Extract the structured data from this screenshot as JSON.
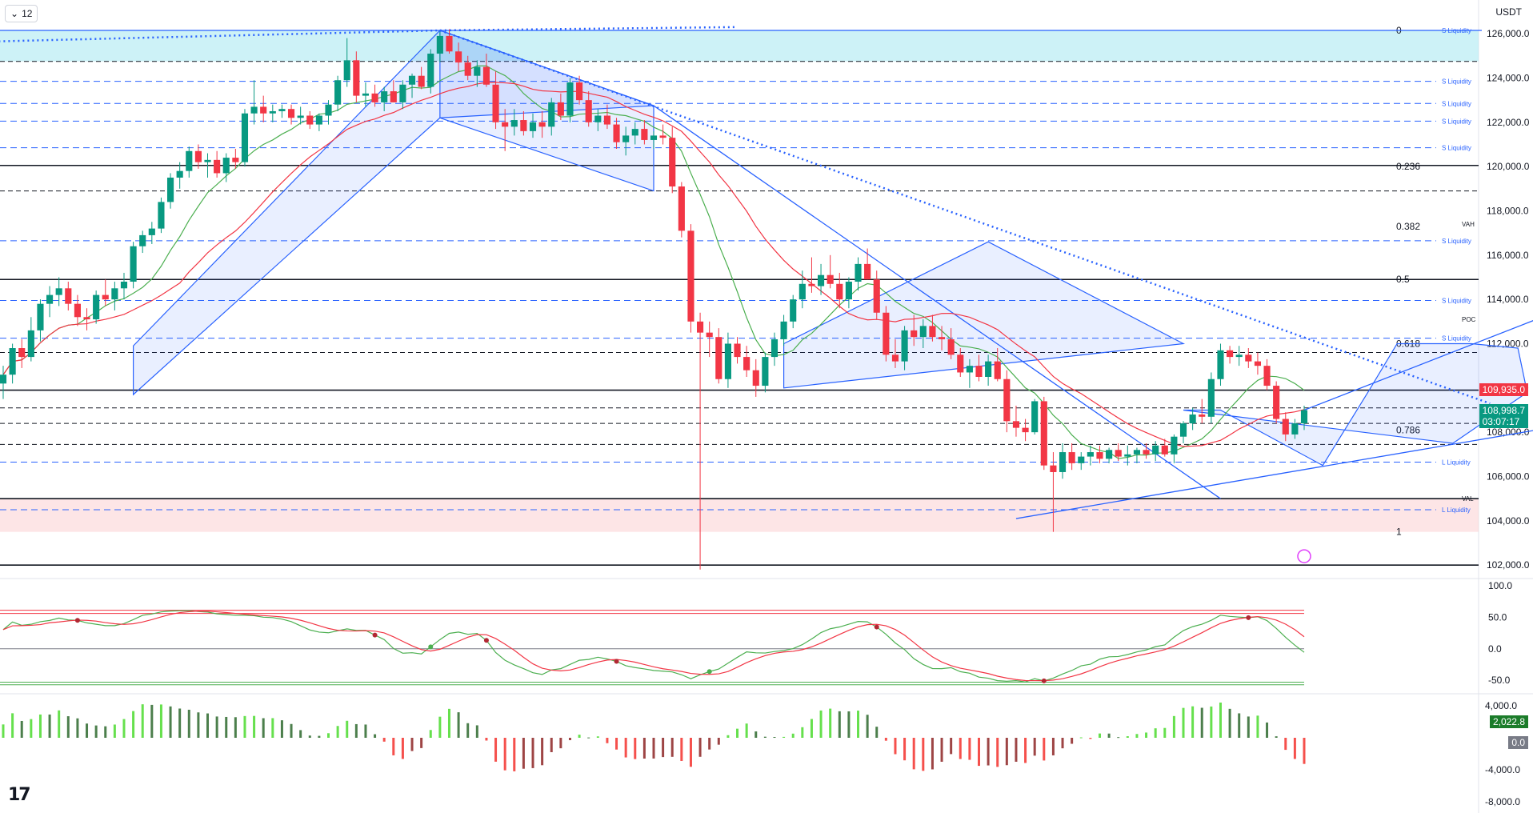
{
  "interval": {
    "label": "12",
    "chevron_icon": "chevron-down-icon"
  },
  "currency": "USDT",
  "logo": "tradingview-logo",
  "chart_data": [
    {
      "type": "candlestick",
      "title": "",
      "ylim": [
        101500,
        126800
      ],
      "y_ticks": [
        "126,000.0",
        "124,000.0",
        "122,000.0",
        "120,000.0",
        "118,000.0",
        "116,000.0",
        "114,000.0",
        "112,000.0",
        "110,000.0",
        "108,000.0",
        "106,000.0",
        "104,000.0",
        "102,000.0"
      ],
      "y_tick_values": [
        126000,
        124000,
        122000,
        120000,
        118000,
        116000,
        114000,
        112000,
        110000,
        108000,
        106000,
        104000,
        102000
      ],
      "current_price": {
        "label": "108,998.7",
        "countdown": "03:07:17",
        "color": "#089981"
      },
      "marked_price": {
        "label": "109,935.0",
        "color": "#f23645"
      },
      "fib_levels": [
        {
          "label": "0",
          "value": 126150
        },
        {
          "label": "0.236",
          "value": 120000
        },
        {
          "label": "0.382",
          "value": 117300
        },
        {
          "label": "0.5",
          "value": 114900
        },
        {
          "label": "0.618",
          "value": 112000
        },
        {
          "label": "0.786",
          "value": 108100
        },
        {
          "label": "1",
          "value": 103500
        }
      ],
      "liquidity_levels": [
        {
          "label": "S Liquidity",
          "value": 126150
        },
        {
          "label": "S Liquidity",
          "value": 123850
        },
        {
          "label": "S Liquidity",
          "value": 122850
        },
        {
          "label": "S Liquidity",
          "value": 122050
        },
        {
          "label": "S Liquidity",
          "value": 120850
        },
        {
          "label": "S Liquidity",
          "value": 116650
        },
        {
          "label": "S Liquidity",
          "value": 113950
        },
        {
          "label": "S Liquidity",
          "value": 112250
        },
        {
          "label": "L Liquidity",
          "value": 106650
        },
        {
          "label": "L Liquidity",
          "value": 104500
        }
      ],
      "profile_levels": [
        {
          "label": "VAH",
          "value": 117400
        },
        {
          "label": "POC",
          "value": 113100
        },
        {
          "label": "VAL",
          "value": 105000
        }
      ],
      "solid_levels": [
        120050,
        114900,
        109900,
        105000,
        102000
      ],
      "dashed_levels": [
        124750,
        118900,
        111600,
        109100,
        108400,
        107450
      ],
      "zones": [
        {
          "name": "supply-zone",
          "from": 124750,
          "to": 126150,
          "color": "#b2ebf2"
        },
        {
          "name": "demand-zone",
          "from": 103500,
          "to": 105000,
          "color": "#fcd7d9"
        }
      ],
      "candles": [
        [
          110200,
          111000,
          109500,
          110600
        ],
        [
          110600,
          112000,
          110200,
          111800
        ],
        [
          111800,
          112200,
          110900,
          111400
        ],
        [
          111400,
          113200,
          111200,
          112600
        ],
        [
          112600,
          114000,
          112100,
          113800
        ],
        [
          113800,
          114600,
          113200,
          114200
        ],
        [
          114200,
          115000,
          113700,
          114500
        ],
        [
          114500,
          114800,
          113500,
          113800
        ],
        [
          113800,
          114200,
          112800,
          113200
        ],
        [
          113200,
          113600,
          112600,
          113100
        ],
        [
          113100,
          114400,
          112900,
          114200
        ],
        [
          114200,
          114900,
          113700,
          114000
        ],
        [
          114000,
          114800,
          113500,
          114500
        ],
        [
          114500,
          115200,
          114000,
          114800
        ],
        [
          114800,
          116600,
          114500,
          116400
        ],
        [
          116400,
          117100,
          116100,
          116900
        ],
        [
          116900,
          117500,
          116500,
          117200
        ],
        [
          117200,
          118600,
          117000,
          118400
        ],
        [
          118400,
          119700,
          118100,
          119500
        ],
        [
          119500,
          120200,
          119000,
          119800
        ],
        [
          119800,
          120900,
          119500,
          120700
        ],
        [
          120700,
          121000,
          119900,
          120200
        ],
        [
          120200,
          120600,
          119500,
          120300
        ],
        [
          120300,
          120700,
          119500,
          119700
        ],
        [
          119700,
          120600,
          119300,
          120400
        ],
        [
          120400,
          120800,
          119900,
          120200
        ],
        [
          120200,
          122600,
          120000,
          122400
        ],
        [
          122400,
          123900,
          121900,
          122700
        ],
        [
          122700,
          123200,
          122000,
          122400
        ],
        [
          122400,
          122800,
          122000,
          122500
        ],
        [
          122500,
          122800,
          122200,
          122600
        ],
        [
          122600,
          122800,
          121900,
          122200
        ],
        [
          122200,
          122700,
          121900,
          122300
        ],
        [
          122300,
          122500,
          121700,
          121900
        ],
        [
          121900,
          122400,
          121600,
          122300
        ],
        [
          122300,
          123000,
          121900,
          122800
        ],
        [
          122800,
          124100,
          122500,
          123900
        ],
        [
          123900,
          125800,
          123600,
          124800
        ],
        [
          124800,
          125200,
          122900,
          123200
        ],
        [
          123200,
          123800,
          122700,
          123300
        ],
        [
          123300,
          123700,
          122700,
          122900
        ],
        [
          122900,
          123600,
          122500,
          123400
        ],
        [
          123400,
          123900,
          122900,
          122900
        ],
        [
          122900,
          123900,
          122600,
          123700
        ],
        [
          123700,
          124200,
          123100,
          124100
        ],
        [
          124100,
          124500,
          123500,
          123600
        ],
        [
          123600,
          125300,
          123300,
          125100
        ],
        [
          125100,
          126100,
          124700,
          125900
        ],
        [
          125900,
          126200,
          125100,
          125200
        ],
        [
          125200,
          125600,
          124300,
          124700
        ],
        [
          124700,
          125000,
          123900,
          124100
        ],
        [
          124100,
          124800,
          123600,
          124500
        ],
        [
          124500,
          125100,
          123600,
          123700
        ],
        [
          123700,
          124300,
          121700,
          122000
        ],
        [
          122000,
          122600,
          120700,
          121800
        ],
        [
          121800,
          122600,
          121400,
          122100
        ],
        [
          122100,
          122500,
          121400,
          121600
        ],
        [
          121600,
          122400,
          121300,
          122000
        ],
        [
          122000,
          122500,
          121300,
          121800
        ],
        [
          121800,
          123100,
          121400,
          122900
        ],
        [
          122900,
          123300,
          122100,
          122300
        ],
        [
          122300,
          124000,
          122000,
          123800
        ],
        [
          123800,
          124100,
          122800,
          123000
        ],
        [
          123000,
          123400,
          121800,
          122000
        ],
        [
          122000,
          122600,
          121600,
          122300
        ],
        [
          122300,
          122800,
          121700,
          121900
        ],
        [
          121900,
          122200,
          120800,
          121100
        ],
        [
          121100,
          121800,
          120500,
          121400
        ],
        [
          121400,
          122000,
          121000,
          121700
        ],
        [
          121700,
          122100,
          121000,
          121200
        ],
        [
          121200,
          121600,
          120800,
          121400
        ],
        [
          121400,
          121900,
          121000,
          121300
        ],
        [
          121300,
          121800,
          118800,
          119100
        ],
        [
          119100,
          119300,
          116800,
          117100
        ],
        [
          117100,
          117400,
          112500,
          113000
        ],
        [
          113000,
          113400,
          101800,
          112500
        ],
        [
          112500,
          113000,
          111400,
          112300
        ],
        [
          112300,
          112700,
          110200,
          110400
        ],
        [
          110400,
          112500,
          110000,
          112000
        ],
        [
          112000,
          112300,
          111100,
          111400
        ],
        [
          111400,
          111900,
          110500,
          110800
        ],
        [
          110800,
          111300,
          109600,
          110100
        ],
        [
          110100,
          111600,
          109800,
          111400
        ],
        [
          111400,
          112500,
          111000,
          112200
        ],
        [
          112200,
          113300,
          111900,
          113000
        ],
        [
          113000,
          114200,
          112700,
          114000
        ],
        [
          114000,
          115300,
          113600,
          114700
        ],
        [
          114700,
          115900,
          114300,
          114600
        ],
        [
          114600,
          115600,
          114200,
          115100
        ],
        [
          115100,
          116000,
          114500,
          114700
        ],
        [
          114700,
          115200,
          113600,
          114000
        ],
        [
          114000,
          115000,
          113600,
          114800
        ],
        [
          114800,
          115900,
          114400,
          115600
        ],
        [
          115600,
          116300,
          114900,
          114900
        ],
        [
          114900,
          115300,
          113100,
          113400
        ],
        [
          113400,
          113700,
          111200,
          111500
        ],
        [
          111500,
          112200,
          110900,
          111200
        ],
        [
          111200,
          112800,
          110800,
          112600
        ],
        [
          112600,
          113300,
          111900,
          112300
        ],
        [
          112300,
          113100,
          111800,
          112800
        ],
        [
          112800,
          113300,
          112100,
          112300
        ],
        [
          112300,
          112800,
          111700,
          112200
        ],
        [
          112200,
          112700,
          111300,
          111500
        ],
        [
          111500,
          111800,
          110500,
          110700
        ],
        [
          110700,
          111300,
          110000,
          111000
        ],
        [
          111000,
          111500,
          110300,
          110500
        ],
        [
          110500,
          111500,
          110100,
          111200
        ],
        [
          111200,
          111800,
          110300,
          110400
        ],
        [
          110400,
          110800,
          108000,
          108500
        ],
        [
          108500,
          109200,
          107800,
          108200
        ],
        [
          108200,
          108600,
          107600,
          108000
        ],
        [
          108000,
          109500,
          107900,
          109400
        ],
        [
          109400,
          109600,
          106300,
          106500
        ],
        [
          106500,
          107100,
          103500,
          106200
        ],
        [
          106200,
          107500,
          105900,
          107100
        ],
        [
          107100,
          107500,
          106300,
          106600
        ],
        [
          106600,
          107100,
          106300,
          106900
        ],
        [
          106900,
          107400,
          106500,
          107100
        ],
        [
          107100,
          107400,
          106600,
          106800
        ],
        [
          106800,
          107300,
          106600,
          107200
        ],
        [
          107200,
          107500,
          106700,
          106900
        ],
        [
          106900,
          107400,
          106500,
          107000
        ],
        [
          107000,
          107300,
          106600,
          107200
        ],
        [
          107200,
          107500,
          106800,
          107000
        ],
        [
          107000,
          107600,
          106700,
          107400
        ],
        [
          107400,
          107700,
          106900,
          107000
        ],
        [
          107000,
          107900,
          106600,
          107800
        ],
        [
          107800,
          108500,
          107500,
          108400
        ],
        [
          108400,
          109100,
          108100,
          108800
        ],
        [
          108800,
          109500,
          108400,
          108700
        ],
        [
          108700,
          110700,
          108400,
          110400
        ],
        [
          110400,
          112000,
          110100,
          111700
        ],
        [
          111700,
          111900,
          111100,
          111400
        ],
        [
          111400,
          111900,
          111000,
          111500
        ],
        [
          111500,
          111800,
          110900,
          111200
        ],
        [
          111200,
          111600,
          110600,
          111000
        ],
        [
          111000,
          111300,
          109900,
          110100
        ],
        [
          110100,
          110300,
          108400,
          108600
        ],
        [
          108600,
          108900,
          107600,
          107900
        ],
        [
          107900,
          108600,
          107700,
          108400
        ],
        [
          108400,
          109200,
          108100,
          108998.7
        ]
      ],
      "sma_fast_color": "#4caf50",
      "sma_slow_color": "#f23645"
    },
    {
      "type": "line",
      "name": "oscillator",
      "y_ticks": [
        "100.0",
        "50.0",
        "0.0",
        "-50.0"
      ],
      "y_tick_values": [
        100,
        50,
        0,
        -50
      ],
      "ylim": [
        -65,
        105
      ],
      "levels": {
        "upper": [
          56,
          61
        ],
        "lower": [
          -53,
          -57
        ]
      },
      "series_colors": [
        "#4caf50",
        "#f23645",
        "#b2b5be"
      ]
    },
    {
      "type": "bar",
      "name": "histogram",
      "y_ticks": [
        "4,000.0",
        "-4,000.0",
        "-8,000.0"
      ],
      "y_tick_values": [
        4000,
        -4000,
        -8000
      ],
      "ylim": [
        -9000,
        5000
      ],
      "current_value": {
        "label": "2,022.8",
        "color": "#1b7c2a"
      },
      "zero_value": {
        "label": "0.0",
        "color": "#787b86"
      },
      "colors": {
        "pos_strong": "#66e04d",
        "pos_weak": "#4c7f4c",
        "neg_strong": "#f5504c",
        "neg_weak": "#9e4545"
      }
    }
  ]
}
